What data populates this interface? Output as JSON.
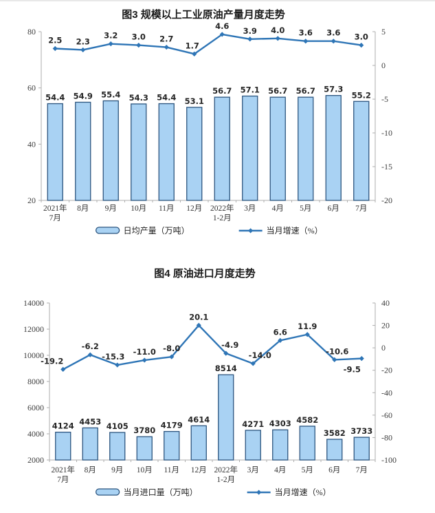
{
  "colors": {
    "bar_fill": "#A9D2F3",
    "bar_stroke": "#2B547E",
    "line": "#2E75B6",
    "axis": "#ADADAD",
    "background": "#FFFFFF"
  },
  "chart_data": [
    {
      "type": "bar+line",
      "title": "图3 规模以上工业原油产量月度走势",
      "categories": [
        "2021年\n7月",
        "8月",
        "9月",
        "10月",
        "11月",
        "12月",
        "2022年\n1-2月",
        "3月",
        "4月",
        "5月",
        "6月",
        "7月"
      ],
      "series": [
        {
          "type": "bar",
          "name": "日均产量（万吨）",
          "axis": "left",
          "values": [
            54.4,
            54.9,
            55.4,
            54.3,
            54.4,
            53.1,
            56.7,
            57.1,
            56.7,
            56.7,
            57.3,
            55.2
          ],
          "labels": [
            "54.4",
            "54.9",
            "55.4",
            "54.3",
            "54.4",
            "53.1",
            "56.7",
            "57.1",
            "56.7",
            "56.7",
            "57.3",
            "55.2"
          ]
        },
        {
          "type": "line",
          "name": "当月增速（%）",
          "axis": "right",
          "values": [
            2.5,
            2.3,
            3.2,
            3.0,
            2.7,
            1.7,
            4.6,
            3.9,
            4.0,
            3.6,
            3.6,
            3.0
          ],
          "labels": [
            "2.5",
            "2.3",
            "3.2",
            "3.0",
            "2.7",
            "1.7",
            "4.6",
            "3.9",
            "4.0",
            "3.6",
            "3.6",
            "3.0"
          ],
          "label_dx": [
            0,
            0,
            0,
            0,
            0,
            -3,
            0,
            0,
            0,
            0,
            0,
            0
          ],
          "label_below": []
        }
      ],
      "left_axis": {
        "min": 20,
        "max": 80,
        "ticks": [
          20,
          40,
          60,
          80
        ]
      },
      "right_axis": {
        "min": -20,
        "max": 5,
        "ticks": [
          -20,
          -15,
          -10,
          -5,
          0,
          5
        ]
      },
      "grid": false,
      "legend_position": "bottom"
    },
    {
      "type": "bar+line",
      "title": "图4 原油进口月度走势",
      "categories": [
        "2021年\n7月",
        "8月",
        "9月",
        "10月",
        "11月",
        "12月",
        "2022年\n1-2月",
        "3月",
        "4月",
        "5月",
        "6月",
        "7月"
      ],
      "series": [
        {
          "type": "bar",
          "name": "当月进口量（万吨）",
          "axis": "left",
          "values": [
            4124,
            4453,
            4105,
            3780,
            4179,
            4614,
            8514,
            4271,
            4303,
            4582,
            3582,
            3733
          ],
          "labels": [
            "4124",
            "4453",
            "4105",
            "3780",
            "4179",
            "4614",
            "8514",
            "4271",
            "4303",
            "4582",
            "3582",
            "3733"
          ]
        },
        {
          "type": "line",
          "name": "当月增速（%）",
          "axis": "right",
          "values": [
            -19.2,
            -6.2,
            -15.3,
            -11.0,
            -8.0,
            20.1,
            -4.9,
            -14.0,
            6.6,
            11.9,
            -10.6,
            -9.5
          ],
          "labels": [
            "-19.2",
            "-6.2",
            "-15.3",
            "-11.0",
            "-8.0",
            "20.1",
            "-4.9",
            "-14.0",
            "6.6",
            "11.9",
            "-10.6",
            "-9.5"
          ],
          "label_dx": [
            -16,
            0,
            -6,
            0,
            0,
            0,
            6,
            10,
            0,
            0,
            4,
            -14
          ],
          "label_below": [
            11
          ]
        }
      ],
      "left_axis": {
        "min": 2000,
        "max": 14000,
        "ticks": [
          2000,
          4000,
          6000,
          8000,
          10000,
          12000,
          14000
        ]
      },
      "right_axis": {
        "min": -100,
        "max": 40,
        "ticks": [
          -100,
          -80,
          -60,
          -40,
          -20,
          0,
          20,
          40
        ]
      },
      "grid": false,
      "legend_position": "bottom"
    }
  ]
}
